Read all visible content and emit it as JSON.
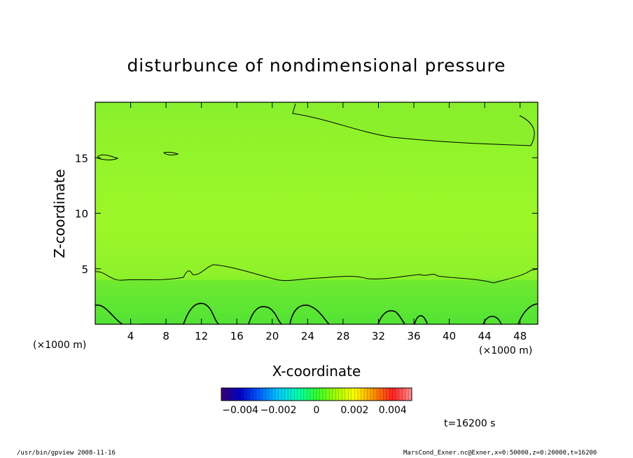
{
  "chart_data": {
    "type": "heatmap",
    "title": "disturbunce of nondimensional pressure",
    "xlabel": "X-coordinate",
    "ylabel": "Z-coordinate",
    "x_unit_left": "(×1000 m)",
    "x_unit_right": "(×1000 m)",
    "xlim": [
      0,
      50
    ],
    "ylim": [
      0,
      20
    ],
    "x_ticks": [
      4,
      8,
      12,
      16,
      20,
      24,
      28,
      32,
      36,
      40,
      44,
      48
    ],
    "x_tick_labels": [
      "4",
      "8",
      "12",
      "16",
      "20",
      "24",
      "28",
      "32",
      "36",
      "40",
      "44",
      "48"
    ],
    "y_ticks": [
      5,
      10,
      15
    ],
    "y_tick_labels": [
      "5",
      "10",
      "15"
    ],
    "colorbar": {
      "range": [
        -0.005,
        0.005
      ],
      "ticks": [
        -0.004,
        -0.002,
        0,
        0.002,
        0.004
      ],
      "tick_labels": [
        "−0.004",
        "−0.002",
        "0",
        "0.002",
        "0.004"
      ],
      "colormap": "rainbow",
      "colors": [
        "#3a0070",
        "#0000cc",
        "#0060ff",
        "#00c8ff",
        "#00ffb0",
        "#30ff30",
        "#a0ff00",
        "#ffff00",
        "#ff9000",
        "#ff2020",
        "#ff9090"
      ]
    },
    "field_summary": "values near 0 everywhere; slightly negative (green) near the surface and aloft, slightly positive (yellow-green) in mid levels",
    "contours": {
      "upper_region_top_right_z": [
        17.3,
        16.2
      ],
      "surface_level_z": 4.6,
      "surface_bumps_x": [
        1,
        12,
        19,
        24,
        33,
        46,
        49
      ]
    },
    "annotation_time": "t=16200 s"
  },
  "footer": {
    "left": "/usr/bin/gpview   2008-11-16",
    "right": "MarsCond_Exner.nc@Exner,x=0:50000,z=0:20000,t=16200"
  }
}
